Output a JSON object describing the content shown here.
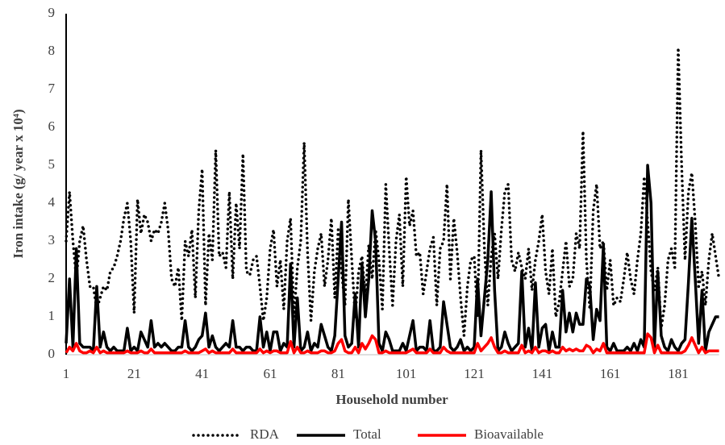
{
  "chart_data": {
    "type": "line",
    "x_label": "Household number",
    "y_label": "Iron intake (g/ year x 10⁴)",
    "xlim": [
      1,
      193
    ],
    "xticks": [
      1,
      21,
      41,
      61,
      81,
      101,
      121,
      141,
      161,
      181
    ],
    "ylim": [
      0,
      9
    ],
    "yticks": [
      0,
      1,
      2,
      3,
      4,
      5,
      6,
      7,
      8,
      9
    ],
    "grid": false,
    "legend": "bottom",
    "x": [
      1,
      2,
      3,
      4,
      5,
      6,
      7,
      8,
      9,
      10,
      11,
      12,
      13,
      14,
      15,
      16,
      17,
      18,
      19,
      20,
      21,
      22,
      23,
      24,
      25,
      26,
      27,
      28,
      29,
      30,
      31,
      32,
      33,
      34,
      35,
      36,
      37,
      38,
      39,
      40,
      41,
      42,
      43,
      44,
      45,
      46,
      47,
      48,
      49,
      50,
      51,
      52,
      53,
      54,
      55,
      56,
      57,
      58,
      59,
      60,
      61,
      62,
      63,
      64,
      65,
      66,
      67,
      68,
      69,
      70,
      71,
      72,
      73,
      74,
      75,
      76,
      77,
      78,
      79,
      80,
      81,
      82,
      83,
      84,
      85,
      86,
      87,
      88,
      89,
      90,
      91,
      92,
      93,
      94,
      95,
      96,
      97,
      98,
      99,
      100,
      101,
      102,
      103,
      104,
      105,
      106,
      107,
      108,
      109,
      110,
      111,
      112,
      113,
      114,
      115,
      116,
      117,
      118,
      119,
      120,
      121,
      122,
      123,
      124,
      125,
      126,
      127,
      128,
      129,
      130,
      131,
      132,
      133,
      134,
      135,
      136,
      137,
      138,
      139,
      140,
      141,
      142,
      143,
      144,
      145,
      146,
      147,
      148,
      149,
      150,
      151,
      152,
      153,
      154,
      155,
      156,
      157,
      158,
      159,
      160,
      161,
      162,
      163,
      164,
      165,
      166,
      167,
      168,
      169,
      170,
      171,
      172,
      173,
      174,
      175,
      176,
      177,
      178,
      179,
      180,
      181,
      182,
      183,
      184,
      185,
      186,
      187,
      188,
      189,
      190,
      191,
      192,
      193
    ],
    "series": [
      {
        "name": "RDA",
        "color": "#000000",
        "style": "dotted",
        "values": [
          3.0,
          4.3,
          3.0,
          2.0,
          3.0,
          3.4,
          2.5,
          1.8,
          1.8,
          1.2,
          1.5,
          1.8,
          1.7,
          2.2,
          2.3,
          2.6,
          3.0,
          3.6,
          4.0,
          3.0,
          1.1,
          4.1,
          3.2,
          3.7,
          3.5,
          3.0,
          3.3,
          3.2,
          3.5,
          4.0,
          3.3,
          2.0,
          1.8,
          2.3,
          0.9,
          3.0,
          2.6,
          3.3,
          1.5,
          3.8,
          4.9,
          1.3,
          3.2,
          2.5,
          5.4,
          2.6,
          2.7,
          2.3,
          4.3,
          2.0,
          4.0,
          2.8,
          5.3,
          2.2,
          2.1,
          2.5,
          2.6,
          1.8,
          0.9,
          1.5,
          2.8,
          3.3,
          1.8,
          2.5,
          1.2,
          3.0,
          3.6,
          1.0,
          2.3,
          3.0,
          5.6,
          2.7,
          0.9,
          2.2,
          2.8,
          3.2,
          1.8,
          2.5,
          3.6,
          1.5,
          3.3,
          2.2,
          1.3,
          4.1,
          2.5,
          1.0,
          2.2,
          2.6,
          1.5,
          2.9,
          2.0,
          3.3,
          2.5,
          1.2,
          4.5,
          2.8,
          1.3,
          3.0,
          3.7,
          1.8,
          4.7,
          3.4,
          3.8,
          2.6,
          2.7,
          1.6,
          2.2,
          2.8,
          3.1,
          1.3,
          2.8,
          3.0,
          4.5,
          2.0,
          3.6,
          2.7,
          1.5,
          0.5,
          1.8,
          2.5,
          2.6,
          1.0,
          5.4,
          2.8,
          1.3,
          2.6,
          3.2,
          2.0,
          3.3,
          4.3,
          4.5,
          2.5,
          2.2,
          2.7,
          2.3,
          2.0,
          2.8,
          1.7,
          2.5,
          3.0,
          3.7,
          2.2,
          1.6,
          2.8,
          1.0,
          1.4,
          2.2,
          3.0,
          1.8,
          2.0,
          3.2,
          2.8,
          5.9,
          2.5,
          1.2,
          3.8,
          4.5,
          2.8,
          3.0,
          1.7,
          2.5,
          1.3,
          1.5,
          1.4,
          2.0,
          2.7,
          2.0,
          1.6,
          2.5,
          3.2,
          4.7,
          3.5,
          2.2,
          1.7,
          2.3,
          0.7,
          1.3,
          2.5,
          2.8,
          2.3,
          8.1,
          5.0,
          2.5,
          4.3,
          4.8,
          3.5,
          1.8,
          2.2,
          1.3,
          2.5,
          3.2,
          2.6,
          2.0
        ]
      },
      {
        "name": "Total",
        "color": "#000000",
        "style": "solid",
        "values": [
          0.3,
          2.0,
          0.2,
          2.8,
          0.3,
          0.2,
          0.2,
          0.2,
          0.1,
          1.8,
          0.2,
          0.6,
          0.2,
          0.1,
          0.2,
          0.1,
          0.1,
          0.1,
          0.7,
          0.1,
          0.2,
          0.1,
          0.6,
          0.4,
          0.2,
          0.9,
          0.2,
          0.3,
          0.2,
          0.3,
          0.2,
          0.1,
          0.1,
          0.2,
          0.2,
          0.9,
          0.2,
          0.1,
          0.2,
          0.4,
          0.5,
          1.1,
          0.2,
          0.5,
          0.2,
          0.1,
          0.2,
          0.3,
          0.2,
          0.9,
          0.2,
          0.2,
          0.1,
          0.2,
          0.2,
          0.1,
          0.1,
          1.0,
          0.2,
          0.6,
          0.1,
          0.6,
          0.6,
          0.1,
          0.3,
          0.2,
          2.4,
          0.2,
          1.5,
          0.1,
          0.2,
          0.6,
          0.1,
          0.3,
          0.2,
          0.8,
          0.5,
          0.2,
          0.1,
          0.5,
          2.0,
          3.5,
          0.5,
          0.2,
          0.3,
          1.6,
          0.2,
          2.4,
          1.0,
          2.0,
          3.8,
          3.0,
          0.3,
          0.1,
          0.6,
          0.4,
          0.1,
          0.1,
          0.1,
          0.3,
          0.1,
          0.5,
          0.9,
          0.1,
          0.2,
          0.2,
          0.1,
          0.9,
          0.1,
          0.1,
          0.2,
          1.4,
          0.8,
          0.2,
          0.1,
          0.2,
          0.4,
          0.1,
          0.2,
          0.1,
          0.2,
          2.0,
          0.5,
          1.5,
          2.5,
          4.3,
          1.7,
          0.1,
          0.2,
          0.6,
          0.3,
          0.1,
          0.2,
          0.3,
          2.2,
          0.2,
          0.7,
          0.1,
          1.9,
          0.2,
          0.7,
          0.8,
          0.1,
          0.6,
          0.2,
          0.2,
          1.7,
          0.6,
          1.1,
          0.6,
          1.1,
          0.8,
          0.8,
          2.0,
          1.8,
          0.4,
          1.2,
          0.9,
          2.9,
          0.2,
          0.1,
          0.3,
          0.1,
          0.1,
          0.1,
          0.2,
          0.1,
          0.3,
          0.1,
          0.4,
          0.2,
          5.0,
          4.0,
          0.2,
          2.2,
          0.5,
          0.2,
          0.1,
          0.4,
          0.2,
          0.1,
          0.3,
          0.4,
          1.9,
          3.6,
          2.0,
          0.3,
          1.7,
          0.1,
          0.6,
          0.8,
          1.0,
          1.0
        ]
      },
      {
        "name": "Bioavailable",
        "color": "#ff0000",
        "style": "solid",
        "values": [
          0.05,
          0.2,
          0.1,
          0.3,
          0.1,
          0.05,
          0.05,
          0.1,
          0.05,
          0.2,
          0.05,
          0.1,
          0.05,
          0.05,
          0.05,
          0.05,
          0.05,
          0.05,
          0.1,
          0.05,
          0.05,
          0.05,
          0.1,
          0.05,
          0.05,
          0.15,
          0.05,
          0.05,
          0.05,
          0.05,
          0.05,
          0.05,
          0.05,
          0.05,
          0.05,
          0.1,
          0.05,
          0.05,
          0.05,
          0.05,
          0.1,
          0.15,
          0.05,
          0.1,
          0.05,
          0.05,
          0.05,
          0.05,
          0.05,
          0.15,
          0.05,
          0.05,
          0.05,
          0.05,
          0.05,
          0.05,
          0.05,
          0.15,
          0.05,
          0.1,
          0.05,
          0.1,
          0.1,
          0.05,
          0.05,
          0.05,
          0.35,
          0.05,
          0.2,
          0.05,
          0.05,
          0.1,
          0.05,
          0.05,
          0.05,
          0.1,
          0.1,
          0.05,
          0.05,
          0.1,
          0.3,
          0.4,
          0.1,
          0.05,
          0.05,
          0.2,
          0.05,
          0.3,
          0.15,
          0.3,
          0.5,
          0.4,
          0.05,
          0.05,
          0.1,
          0.05,
          0.05,
          0.05,
          0.05,
          0.05,
          0.05,
          0.1,
          0.15,
          0.05,
          0.05,
          0.05,
          0.05,
          0.15,
          0.05,
          0.05,
          0.05,
          0.2,
          0.1,
          0.05,
          0.05,
          0.05,
          0.05,
          0.05,
          0.05,
          0.05,
          0.05,
          0.3,
          0.1,
          0.2,
          0.3,
          0.45,
          0.2,
          0.05,
          0.05,
          0.1,
          0.05,
          0.05,
          0.05,
          0.05,
          0.25,
          0.05,
          0.1,
          0.05,
          0.2,
          0.05,
          0.1,
          0.1,
          0.05,
          0.1,
          0.05,
          0.05,
          0.2,
          0.1,
          0.15,
          0.1,
          0.15,
          0.1,
          0.1,
          0.25,
          0.2,
          0.05,
          0.15,
          0.1,
          0.3,
          0.05,
          0.05,
          0.05,
          0.05,
          0.05,
          0.05,
          0.05,
          0.05,
          0.05,
          0.05,
          0.05,
          0.05,
          0.55,
          0.45,
          0.05,
          0.25,
          0.05,
          0.05,
          0.05,
          0.05,
          0.05,
          0.05,
          0.05,
          0.1,
          0.25,
          0.45,
          0.25,
          0.05,
          0.2,
          0.05,
          0.1,
          0.1,
          0.1,
          0.1
        ]
      }
    ]
  }
}
